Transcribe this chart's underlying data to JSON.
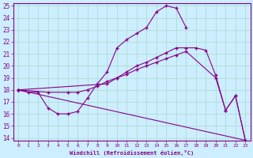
{
  "xlabel": "Windchill (Refroidissement éolien,°C)",
  "background_color": "#cceeff",
  "grid_color": "#b0ddd0",
  "line_color": "#880088",
  "xlim": [
    -0.5,
    23.5
  ],
  "ylim": [
    13.8,
    25.2
  ],
  "xticks": [
    0,
    1,
    2,
    3,
    4,
    5,
    6,
    7,
    8,
    9,
    10,
    11,
    12,
    13,
    14,
    15,
    16,
    17,
    18,
    19,
    20,
    21,
    22,
    23
  ],
  "yticks": [
    14,
    15,
    16,
    17,
    18,
    19,
    20,
    21,
    22,
    23,
    24,
    25
  ],
  "line1_x": [
    0,
    1,
    2,
    3,
    4,
    5,
    6,
    7,
    8,
    9,
    10,
    11,
    12,
    13,
    14,
    15,
    16,
    17
  ],
  "line1_y": [
    18.0,
    17.8,
    17.8,
    16.5,
    16.0,
    16.0,
    16.2,
    17.3,
    18.5,
    19.5,
    21.5,
    22.2,
    22.7,
    23.2,
    24.5,
    25.0,
    24.8,
    23.2
  ],
  "line2_x": [
    0,
    3,
    5,
    6,
    7,
    8,
    9,
    10,
    11,
    12,
    13,
    14,
    15,
    16,
    17,
    20,
    21,
    22,
    23
  ],
  "line2_y": [
    18.0,
    17.8,
    17.8,
    17.8,
    18.0,
    18.3,
    18.7,
    19.0,
    19.3,
    19.7,
    20.0,
    20.3,
    20.6,
    20.9,
    21.2,
    19.0,
    16.3,
    17.5,
    13.8
  ],
  "line3_x": [
    0,
    9,
    10,
    11,
    12,
    13,
    14,
    15,
    16,
    17,
    18,
    19,
    20,
    21,
    22,
    23
  ],
  "line3_y": [
    18.0,
    18.5,
    19.0,
    19.5,
    20.0,
    20.3,
    20.7,
    21.1,
    21.5,
    21.5,
    21.5,
    21.3,
    19.2,
    16.3,
    17.5,
    13.8
  ],
  "line4_x": [
    0,
    23
  ],
  "line4_y": [
    18.0,
    13.8
  ]
}
